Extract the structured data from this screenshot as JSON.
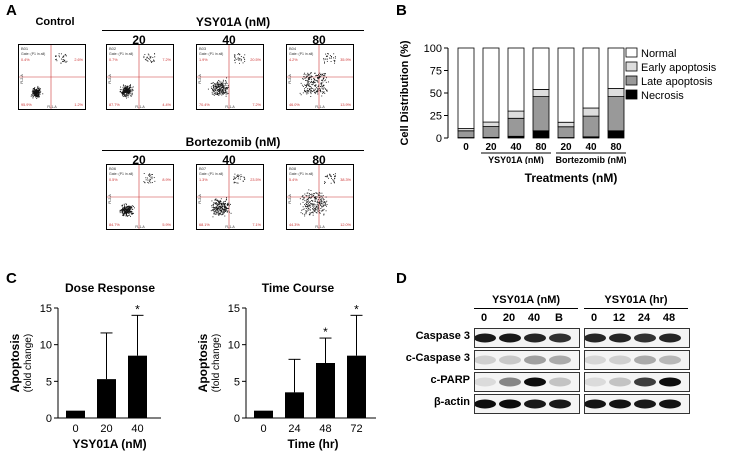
{
  "panels": {
    "a": {
      "label": "A",
      "control_label": "Control",
      "ysy_title": "YSY01A (nM)",
      "btz_title": "Bortezomib (nM)",
      "doses": [
        "20",
        "40",
        "80"
      ],
      "axis_x": "FL1-A",
      "axis_y": "FL2-A",
      "plots": [
        {
          "id": "B01",
          "gate": "Gate: (P1 in all)",
          "q": [
            "0.4%",
            "2.6%",
            "95.9%",
            "1.2%"
          ]
        },
        {
          "id": "B02",
          "gate": "Gate: (P1 in all)",
          "q": [
            "0.7%",
            "7.2%",
            "87.7%",
            "4.4%"
          ]
        },
        {
          "id": "B03",
          "gate": "Gate: (P1 in all)",
          "q": [
            "1.9%",
            "20.5%",
            "70.4%",
            "7.2%"
          ]
        },
        {
          "id": "B04",
          "gate": "Gate: (P1 in all)",
          "q": [
            "4.2%",
            "35.9%",
            "46.0%",
            "13.9%"
          ]
        },
        {
          "id": "B06",
          "gate": "Gate: (P1 in all)",
          "q": [
            "0.5%",
            "8.9%",
            "84.7%",
            "5.9%"
          ]
        },
        {
          "id": "B07",
          "gate": "Gate: (P1 in all)",
          "q": [
            "1.3%",
            "23.5%",
            "68.1%",
            "7.1%"
          ]
        },
        {
          "id": "B08",
          "gate": "Gate: (P1 in all)",
          "q": [
            "5.4%",
            "38.3%",
            "44.3%",
            "12.0%"
          ]
        }
      ]
    },
    "b": {
      "label": "B",
      "group1": "YSY01A (nM)",
      "group2": "Bortezomib (nM)",
      "xlabel_main": "Treatments (nM)"
    },
    "c": {
      "label": "C",
      "ylabel_main": "Apoptosis",
      "ylabel_sub": "(fold change)",
      "sig_mark": "*"
    },
    "d": {
      "label": "D",
      "group1": "YSY01A (nM)",
      "group2": "YSY01A (hr)",
      "lanes1": [
        "0",
        "20",
        "40",
        "B"
      ],
      "lanes2": [
        "0",
        "12",
        "24",
        "48"
      ],
      "rows": [
        "Caspase 3",
        "c-Caspase 3",
        "c-PARP",
        "β-actin"
      ]
    }
  },
  "chart_data": [
    {
      "type": "bar",
      "stacked": true,
      "title": "",
      "ylabel": "Cell Distribution (%)",
      "xlabel": "Treatments (nM)",
      "ylim": [
        0,
        100
      ],
      "yticks": [
        0,
        25,
        50,
        75,
        100
      ],
      "categories": [
        "0",
        "20",
        "40",
        "80",
        "20",
        "40",
        "80"
      ],
      "series": [
        {
          "name": "Necrosis",
          "color": "#000000",
          "values": [
            0.5,
            0.7,
            1.9,
            8.0,
            0.5,
            1.3,
            8.0
          ]
        },
        {
          "name": "Late apoptosis",
          "color": "#999999",
          "values": [
            7.5,
            12,
            20,
            38,
            12,
            23,
            38
          ]
        },
        {
          "name": "Early apoptosis",
          "color": "#dddddd",
          "values": [
            2.5,
            5,
            8,
            8,
            5,
            9,
            9
          ]
        },
        {
          "name": "Normal",
          "color": "#ffffff",
          "values": [
            89.5,
            82.3,
            70.1,
            46.0,
            82.5,
            66.7,
            45.0
          ]
        }
      ],
      "legend_position": "right"
    },
    {
      "type": "bar",
      "title": "Dose Response",
      "xlabel": "YSY01A (nM)",
      "ylabel": "Apoptosis (fold change)",
      "ylim": [
        0,
        15
      ],
      "yticks": [
        0,
        5,
        10,
        15
      ],
      "categories": [
        "0",
        "20",
        "40"
      ],
      "values": [
        1.0,
        5.3,
        8.5
      ],
      "errors": [
        0,
        6.3,
        5.5
      ],
      "significant": [
        false,
        false,
        true
      ]
    },
    {
      "type": "bar",
      "title": "Time Course",
      "xlabel": "Time (hr)",
      "ylabel": "Apoptosis (fold change)",
      "ylim": [
        0,
        15
      ],
      "yticks": [
        0,
        5,
        10,
        15
      ],
      "categories": [
        "0",
        "24",
        "48",
        "72"
      ],
      "values": [
        1.0,
        3.5,
        7.5,
        8.5
      ],
      "errors": [
        0,
        4.5,
        3.4,
        5.5
      ],
      "significant": [
        false,
        false,
        true,
        true
      ]
    }
  ]
}
